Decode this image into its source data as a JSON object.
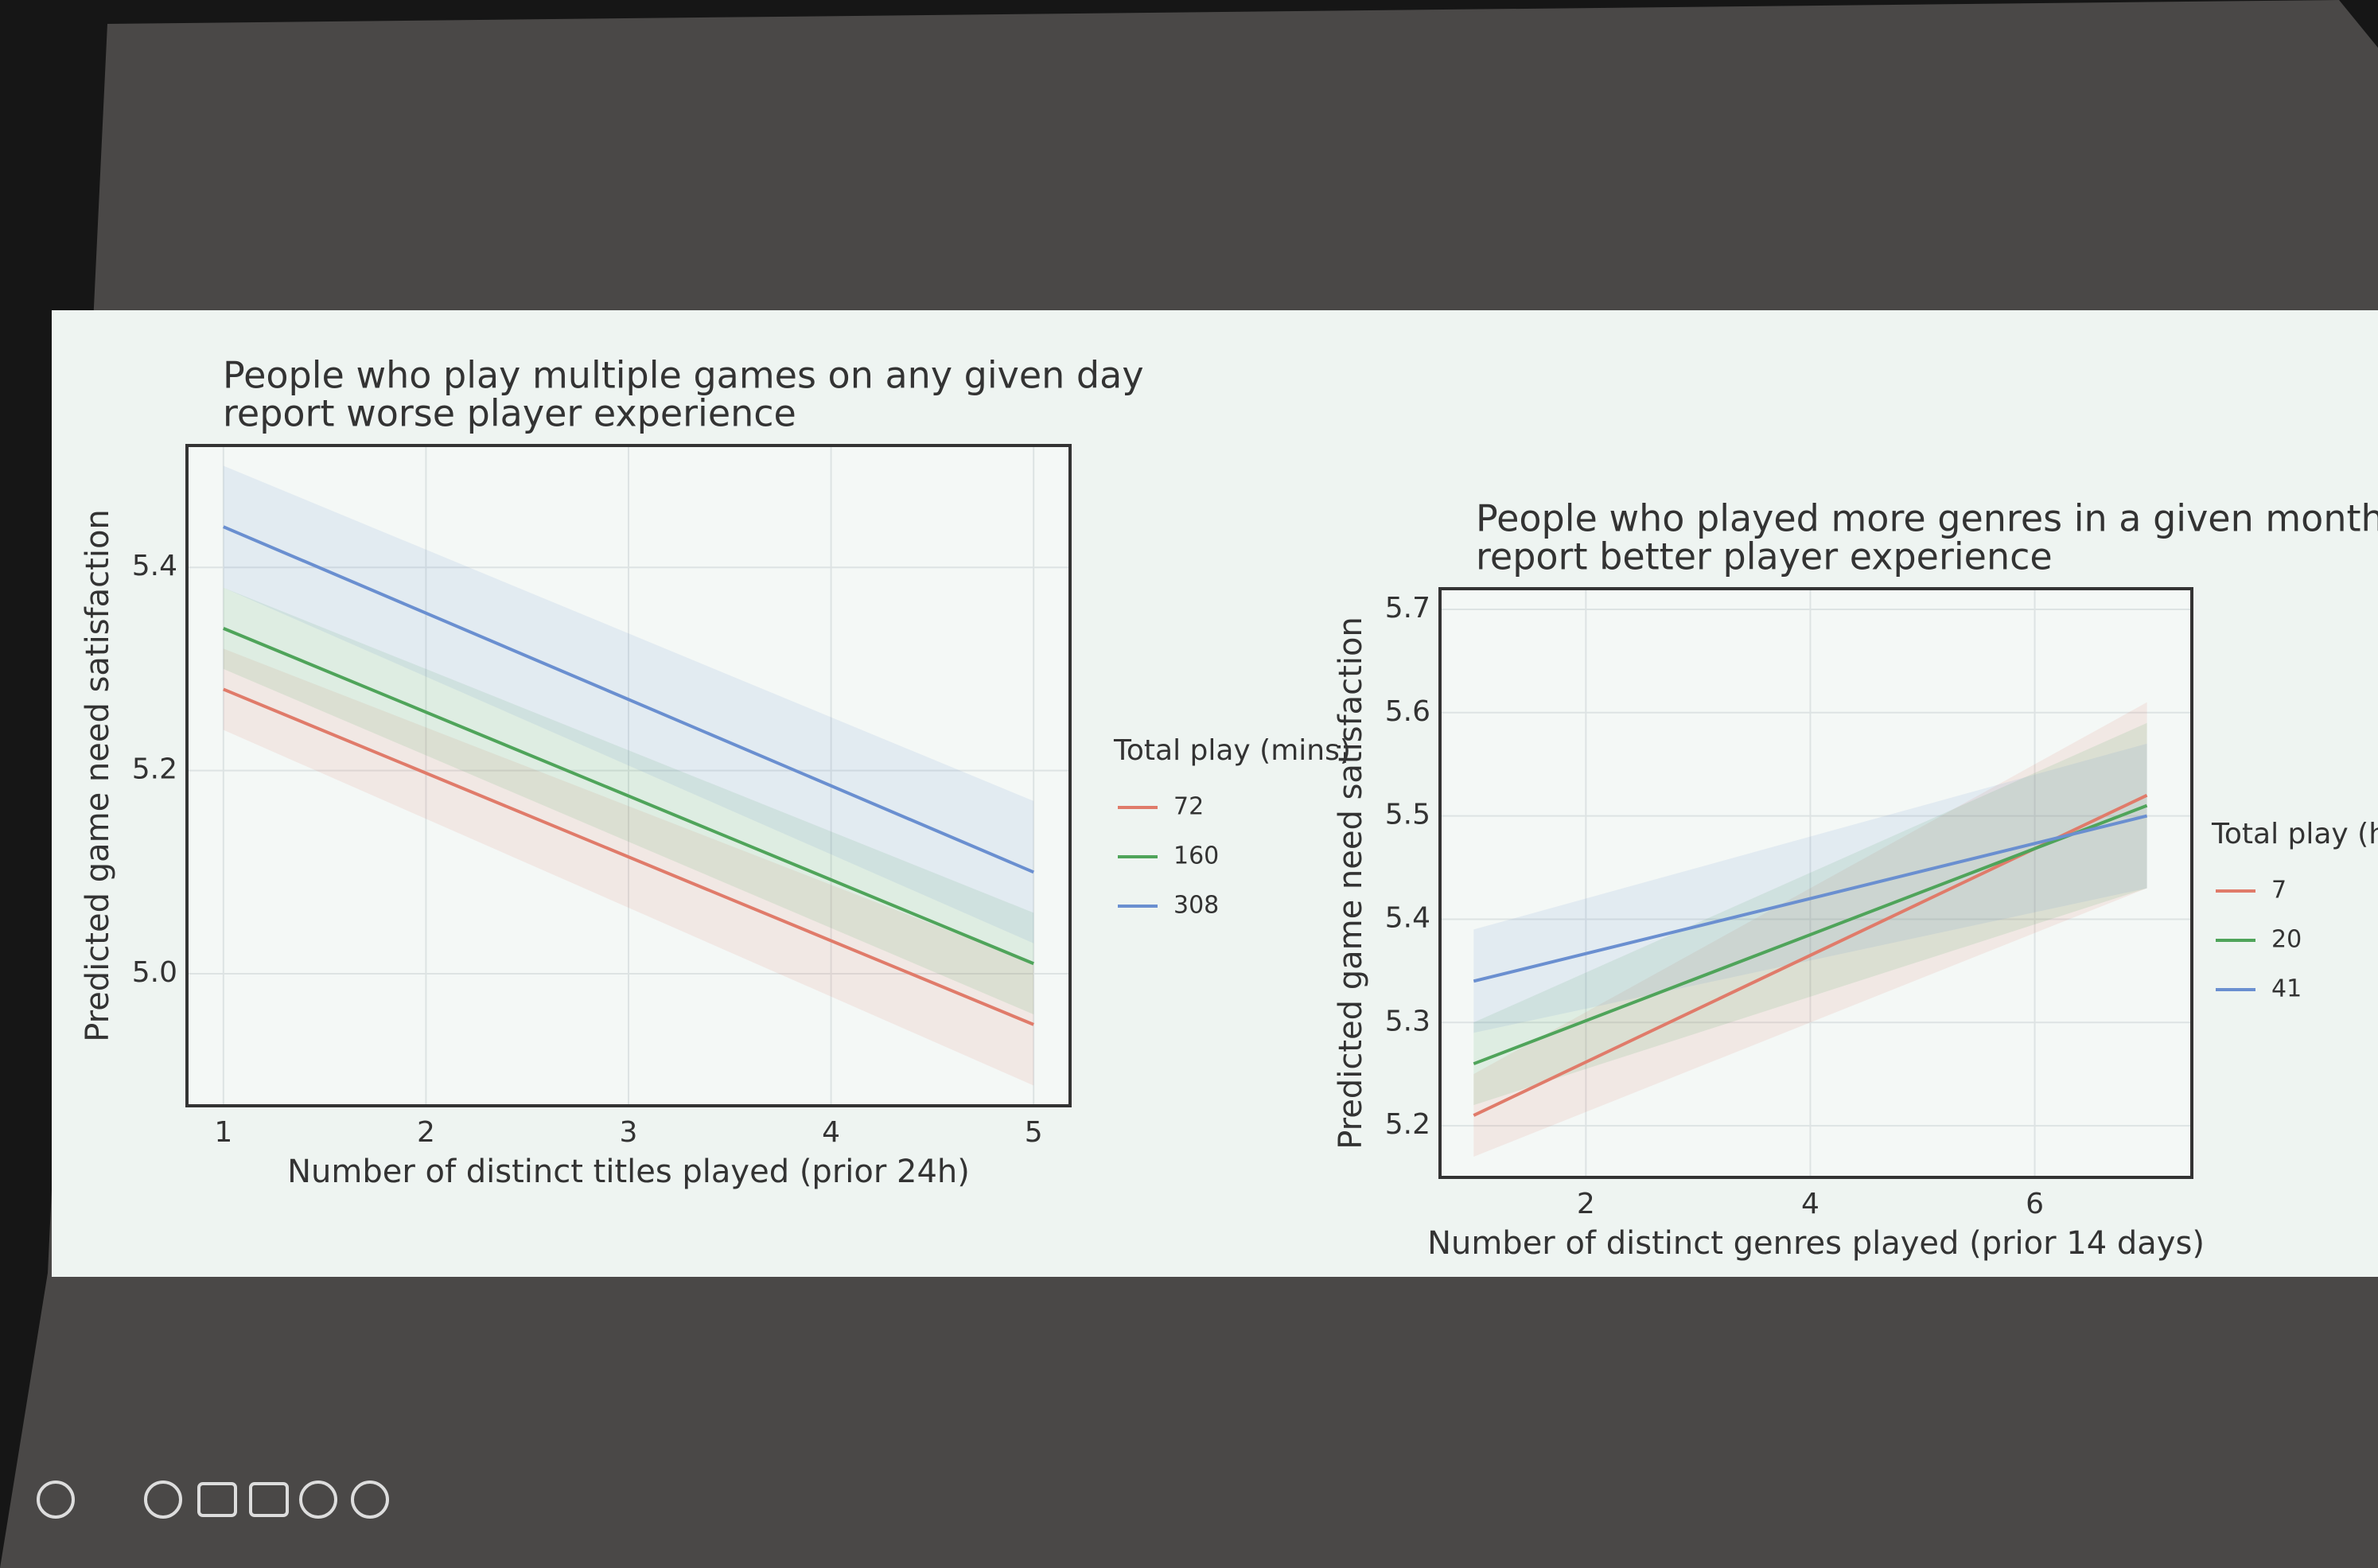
{
  "chart_data": [
    {
      "type": "line",
      "title": [
        "People who play multiple games on any given day",
        "report worse player experience"
      ],
      "x_label": "Number of distinct titles played (prior 24h)",
      "y_label": "Predicted game need satisfaction",
      "x": [
        1,
        5
      ],
      "xlim": [
        0.82,
        5.18
      ],
      "ylim": [
        4.87,
        5.52
      ],
      "xticks": [
        1,
        2,
        3,
        4,
        5
      ],
      "yticks": [
        {
          "value": 5.0,
          "label": "5.0"
        },
        5.2,
        5.4
      ],
      "grid": true,
      "legend_title": "Total play (mins)",
      "series": [
        {
          "name": "72",
          "color": "#e07b6a",
          "values": [
            5.28,
            4.95
          ],
          "lower": [
            5.24,
            4.89
          ],
          "upper": [
            5.32,
            5.01
          ]
        },
        {
          "name": "160",
          "color": "#4fa45a",
          "values": [
            5.34,
            5.01
          ],
          "lower": [
            5.3,
            4.96
          ],
          "upper": [
            5.38,
            5.06
          ]
        },
        {
          "name": "308",
          "color": "#6a8fd0",
          "values": [
            5.44,
            5.1
          ],
          "lower": [
            5.38,
            5.03
          ],
          "upper": [
            5.5,
            5.17
          ]
        }
      ]
    },
    {
      "type": "line",
      "title": [
        "People who played more genres in a given month",
        "report better player experience"
      ],
      "x_label": "Number of distinct genres played (prior 14 days)",
      "y_label": "Predicted game need satisfaction",
      "x": [
        1,
        7
      ],
      "xlim": [
        0.7,
        7.4
      ],
      "ylim": [
        5.15,
        5.72
      ],
      "xticks": [
        2,
        4,
        6
      ],
      "yticks": [
        5.2,
        5.3,
        5.4,
        5.5,
        5.6,
        5.7
      ],
      "grid": true,
      "legend_title": "Total play (hrs)",
      "series": [
        {
          "name": "7",
          "color": "#e07b6a",
          "values": [
            5.21,
            5.52
          ],
          "lower": [
            5.17,
            5.43
          ],
          "upper": [
            5.25,
            5.61
          ]
        },
        {
          "name": "20",
          "color": "#4fa45a",
          "values": [
            5.26,
            5.51
          ],
          "lower": [
            5.22,
            5.43
          ],
          "upper": [
            5.3,
            5.59
          ]
        },
        {
          "name": "41",
          "color": "#6a8fd0",
          "values": [
            5.34,
            5.5
          ],
          "lower": [
            5.29,
            5.43
          ],
          "upper": [
            5.39,
            5.57
          ]
        }
      ]
    }
  ]
}
